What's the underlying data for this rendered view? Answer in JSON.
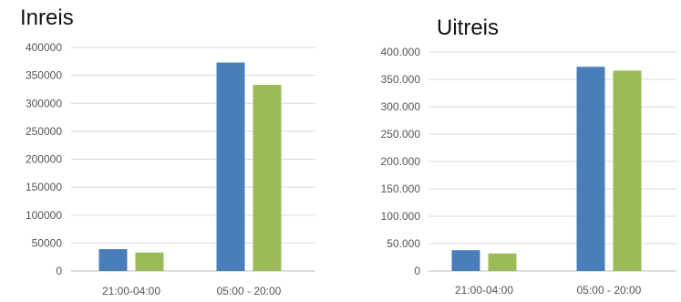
{
  "chart_data": [
    {
      "type": "bar",
      "title": "Inreis",
      "categories": [
        "21:00-04:00",
        "05:00 - 20:00"
      ],
      "y_ticks": [
        "0",
        "50000",
        "100000",
        "150000",
        "200000",
        "250000",
        "300000",
        "350000",
        "400000"
      ],
      "ylim": [
        0,
        400000
      ],
      "grid": true,
      "series": [
        {
          "color": "#4a7ebb",
          "values": [
            39000,
            373000
          ]
        },
        {
          "color": "#9bbb59",
          "values": [
            33000,
            333000
          ]
        }
      ]
    },
    {
      "type": "bar",
      "title": "Uitreis",
      "categories": [
        "21:00-04:00",
        "05:00 - 20:00"
      ],
      "y_ticks": [
        "0",
        "50.000",
        "100.000",
        "150.000",
        "200.000",
        "250.000",
        "300.000",
        "350.000",
        "400.000"
      ],
      "ylim": [
        0,
        400000
      ],
      "grid": true,
      "series": [
        {
          "color": "#4a7ebb",
          "values": [
            38000,
            373000
          ]
        },
        {
          "color": "#9bbb59",
          "values": [
            32000,
            366000
          ]
        }
      ]
    }
  ]
}
